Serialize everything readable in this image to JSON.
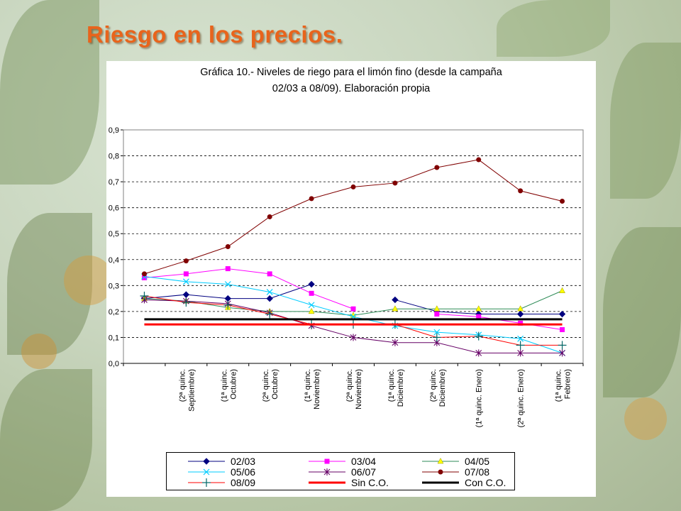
{
  "slide": {
    "title": "Riesgo en los precios."
  },
  "chart_data": {
    "type": "line",
    "title_line1": "Gráfica 10.- Niveles de riego para el limón fino (desde la campaña",
    "title_line2": "02/03 a 08/09). Elaboración propia",
    "ylim": [
      0,
      0.9
    ],
    "y_ticks": [
      "0,0",
      "0,1",
      "0,2",
      "0,3",
      "0,4",
      "0,5",
      "0,6",
      "0,7",
      "0,8",
      "0,9"
    ],
    "grid": "horizontal dashed",
    "legend_position": "bottom",
    "categories": [
      "",
      "(2ª quinc. Septiembre)",
      "(1ª quinc. Octubre)",
      "(2ª quinc. Octubre)",
      "(1ª quinc. Noviembre)",
      "(2ª quinc. Noviembre)",
      "(1ª quinc. Diciembre)",
      "(2ª quinc. Diciembre)",
      "(1ª quinc. Enero)",
      "(2ª quinc. Enero)",
      "(1ª quinc. Febrero)"
    ],
    "x_tick_labels": [
      [
        "(2ª quinc.",
        "Septiembre)"
      ],
      [
        "(1ª quinc.",
        "Octubre)"
      ],
      [
        "(2ª quinc.",
        "Octubre)"
      ],
      [
        "(1ª quinc.",
        "Noviembre)"
      ],
      [
        "(2ª quinc.",
        "Noviembre)"
      ],
      [
        "(1ª quinc.",
        "Diciembre)"
      ],
      [
        "(2ª quinc.",
        "Diciembre)"
      ],
      [
        "(1ª quinc. Enero)"
      ],
      [
        "(2ª quinc. Enero)"
      ],
      [
        "(1ª quinc.",
        "Febrero)"
      ]
    ],
    "series": [
      {
        "name": "02/03",
        "color": "#000080",
        "marker": "diamond",
        "values": [
          0.25,
          0.265,
          0.25,
          0.25,
          0.305,
          null,
          0.245,
          0.2,
          0.19,
          0.19,
          0.19
        ]
      },
      {
        "name": "03/04",
        "color": "#ff00ff",
        "marker": "square",
        "values": [
          0.33,
          0.345,
          0.365,
          0.345,
          0.27,
          0.21,
          null,
          0.19,
          0.18,
          0.155,
          0.13
        ]
      },
      {
        "name": "04/05",
        "color": "#2e8b57",
        "marker": "triangle",
        "marker_color": "#ffff00",
        "values": [
          0.25,
          0.24,
          0.215,
          0.2,
          0.2,
          0.185,
          0.21,
          0.21,
          0.21,
          0.21,
          0.28
        ]
      },
      {
        "name": "05/06",
        "color": "#00ccff",
        "marker": "x",
        "values": [
          0.335,
          0.315,
          0.305,
          0.275,
          0.225,
          0.18,
          0.145,
          0.12,
          0.11,
          0.095,
          0.04
        ]
      },
      {
        "name": "06/07",
        "color": "#660066",
        "marker": "star",
        "values": [
          0.245,
          0.24,
          0.23,
          0.195,
          0.145,
          0.1,
          0.08,
          0.08,
          0.04,
          0.04,
          0.04
        ]
      },
      {
        "name": "07/08",
        "color": "#800000",
        "marker": "circle",
        "values": [
          0.345,
          0.395,
          0.45,
          0.565,
          0.635,
          0.68,
          0.695,
          0.755,
          0.785,
          0.665,
          0.625
        ]
      },
      {
        "name": "08/09",
        "color": "#ff0000",
        "marker": "plus",
        "marker_color": "#006666",
        "values": [
          0.26,
          0.235,
          0.225,
          0.19,
          0.15,
          0.15,
          0.15,
          0.1,
          0.105,
          0.07,
          0.07
        ]
      },
      {
        "name": "Sin C.O.",
        "color": "#ff0000",
        "marker": "none",
        "line_width": 3,
        "values": [
          0.15,
          0.15,
          0.15,
          0.15,
          0.15,
          0.15,
          0.15,
          0.15,
          0.15,
          0.15,
          0.15
        ]
      },
      {
        "name": "Con C.O.",
        "color": "#000000",
        "marker": "none",
        "line_width": 3,
        "values": [
          0.17,
          0.17,
          0.17,
          0.17,
          0.17,
          0.17,
          0.17,
          0.17,
          0.17,
          0.17,
          0.17
        ]
      }
    ]
  }
}
